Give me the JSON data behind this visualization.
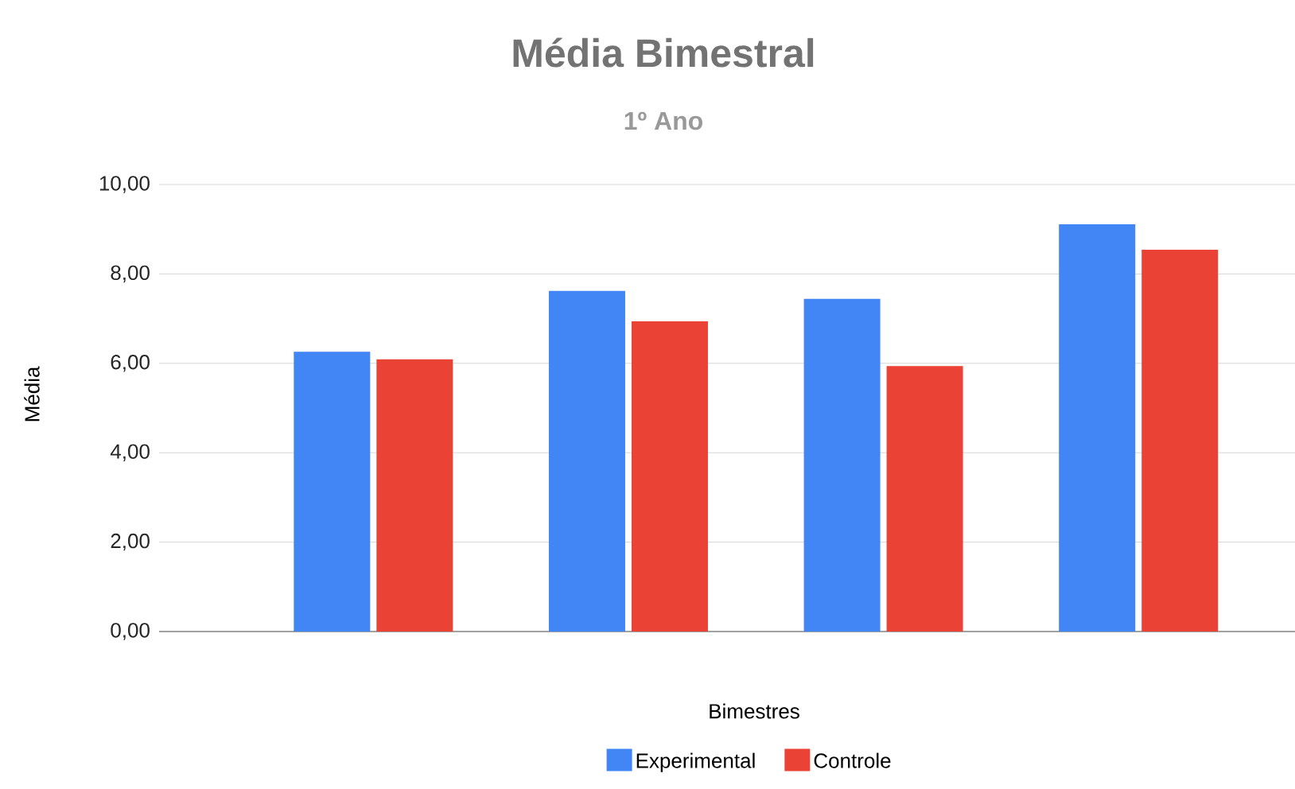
{
  "chart_data": {
    "type": "bar",
    "title": "Média Bimestral",
    "subtitle": "1º Ano",
    "xlabel": "Bimestres",
    "ylabel": "Média",
    "categories": [
      null,
      null,
      null,
      null
    ],
    "series": [
      {
        "name": "Experimental",
        "color": "#4285f4",
        "values": [
          6.26,
          7.62,
          7.44,
          9.11
        ]
      },
      {
        "name": "Controle",
        "color": "#ea4335",
        "values": [
          6.09,
          6.94,
          5.94,
          8.54
        ]
      }
    ],
    "ylim": [
      0,
      10
    ],
    "yticks": [
      {
        "value": 0,
        "label": "0,00"
      },
      {
        "value": 2,
        "label": "2,00"
      },
      {
        "value": 4,
        "label": "4,00"
      },
      {
        "value": 6,
        "label": "6,00"
      },
      {
        "value": 8,
        "label": "8,00"
      },
      {
        "value": 10,
        "label": "10,00"
      }
    ],
    "grid": "y",
    "legend": "bottom"
  }
}
